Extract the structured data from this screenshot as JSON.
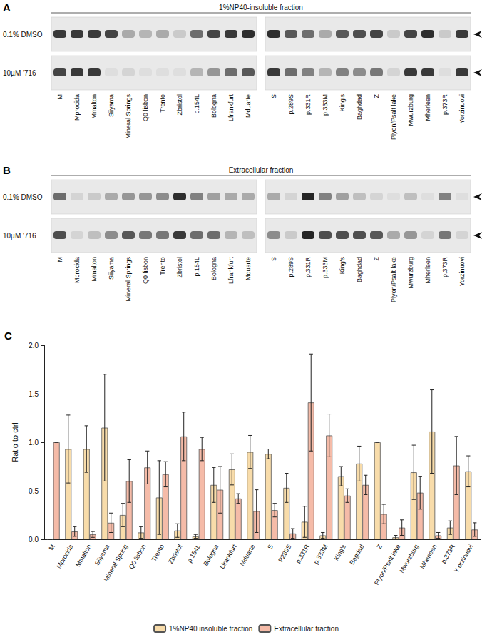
{
  "blots": [
    {
      "panel": "A",
      "title": "1%NP40-insoluble fraction",
      "rows": [
        "0.1% DMSO",
        "10µM '716"
      ],
      "lanes": [
        [
          "M",
          "Mprocida",
          "Mmalton",
          "Siiyama",
          "Mineral Springs",
          "Q0 lisbon",
          "Trento",
          "Zbristol",
          "p.154L",
          "Bologna",
          "Lfrankfurt",
          "Mduarte"
        ],
        [
          "S",
          "p.289S",
          "p.331R",
          "p.333M",
          "King's",
          "Baghdad",
          "Z",
          "Plyon/Psalt lake",
          "Mwurzburg",
          "Mherleen",
          "p.373R",
          "Yorzinuovi"
        ]
      ],
      "band_intensity": [
        [
          0.85,
          0.85,
          0.85,
          0.8,
          0.3,
          0.25,
          0.3,
          0.15,
          0.6,
          0.8,
          0.85,
          0.9,
          0.9,
          0.7,
          0.6,
          0.3,
          0.7,
          0.75,
          0.8,
          0.15,
          0.8,
          0.9,
          0.15,
          0.85
        ],
        [
          0.8,
          0.85,
          0.85,
          0.05,
          0.1,
          0.05,
          0.05,
          0.05,
          0.25,
          0.4,
          0.6,
          0.7,
          0.85,
          0.6,
          0.5,
          0.25,
          0.5,
          0.45,
          0.55,
          0.1,
          0.85,
          0.85,
          0.05,
          0.85
        ]
      ]
    },
    {
      "panel": "B",
      "title": "Extracellular fraction",
      "rows": [
        "0.1% DMSO",
        "10µM '716"
      ],
      "lanes": [
        [
          "M",
          "Mprocida",
          "Mmalton",
          "Siiyama",
          "Mineral Springs",
          "Q0 lisbon",
          "Trento",
          "Zbristol",
          "p.154L",
          "Bologna",
          "Lfrankfurt",
          "Mduarte"
        ],
        [
          "S",
          "p.289S",
          "p.331R",
          "p.333M",
          "King's",
          "Baghdad",
          "Z",
          "Plyon/Psalt lake",
          "Mwurzburg",
          "Mherleen",
          "p.373R",
          "Yorzinuovi"
        ]
      ],
      "band_intensity": [
        [
          0.6,
          0.1,
          0.15,
          0.3,
          0.4,
          0.4,
          0.45,
          0.9,
          0.5,
          0.35,
          0.3,
          0.3,
          0.3,
          0.1,
          0.95,
          0.5,
          0.35,
          0.2,
          0.1,
          0.05,
          0.2,
          0.05,
          0.5,
          0.05
        ],
        [
          0.75,
          0.1,
          0.2,
          0.45,
          0.7,
          0.55,
          0.55,
          0.85,
          0.6,
          0.6,
          0.25,
          0.2,
          0.45,
          0.15,
          0.95,
          0.75,
          0.75,
          0.75,
          0.7,
          0.3,
          0.4,
          0.1,
          0.55,
          0.1
        ]
      ]
    }
  ],
  "chart_data": {
    "panel": "C",
    "type": "bar",
    "categories": [
      "M",
      "Mprocida",
      "Mmalton",
      "Siiyama",
      "Mineral Spring",
      "Q0 lisbon",
      "Trento",
      "Zbristol",
      "p.154L",
      "Bologna",
      "Lfrankfurt",
      "Mduarte",
      "S",
      "P289S",
      "p.331R",
      "p.333M",
      "King's",
      "Bagdad",
      "Z",
      "Plyon/Psalt lake",
      "Mwurzburg",
      "Mherleen",
      "p.373R",
      "Y orzinuovi"
    ],
    "series": [
      {
        "name": "1%NP40 insoluble fraction",
        "color": "#f8dcaa",
        "values": [
          0.0,
          0.93,
          0.93,
          1.15,
          0.25,
          0.07,
          0.43,
          0.09,
          0.03,
          0.56,
          0.72,
          0.9,
          0.88,
          0.53,
          0.18,
          0.04,
          0.65,
          0.78,
          1.0,
          0.02,
          0.69,
          1.11,
          0.12,
          0.7
        ],
        "errors": [
          0.0,
          0.35,
          0.24,
          0.55,
          0.12,
          0.06,
          0.38,
          0.07,
          0.02,
          0.18,
          0.16,
          0.17,
          0.05,
          0.15,
          0.16,
          0.03,
          0.1,
          0.18,
          0.0,
          0.02,
          0.28,
          0.43,
          0.07,
          0.16
        ]
      },
      {
        "name": "Extracellular fraction",
        "color": "#f5bba8",
        "values": [
          1.0,
          0.08,
          0.05,
          0.17,
          0.6,
          0.74,
          0.67,
          1.06,
          0.93,
          0.51,
          0.42,
          0.29,
          0.3,
          0.06,
          1.41,
          1.07,
          0.45,
          0.56,
          0.26,
          0.12,
          0.48,
          0.04,
          0.76,
          0.1
        ],
        "errors": [
          0.0,
          0.05,
          0.03,
          0.1,
          0.22,
          0.17,
          0.13,
          0.25,
          0.12,
          0.24,
          0.05,
          0.22,
          0.07,
          0.05,
          0.5,
          0.22,
          0.07,
          0.1,
          0.1,
          0.08,
          0.17,
          0.03,
          0.3,
          0.07
        ]
      }
    ],
    "ylabel": "Ratio to ctrl",
    "ylim": [
      0,
      2
    ],
    "yticks": [
      {
        "value": 0,
        "label": "0.0"
      },
      {
        "value": 0.5,
        "label": "0.5"
      },
      {
        "value": 1,
        "label": "1.0"
      },
      {
        "value": 1.5,
        "label": "1.5"
      },
      {
        "value": 2,
        "label": "2.0"
      }
    ],
    "grid": false,
    "legend": "bottom"
  }
}
